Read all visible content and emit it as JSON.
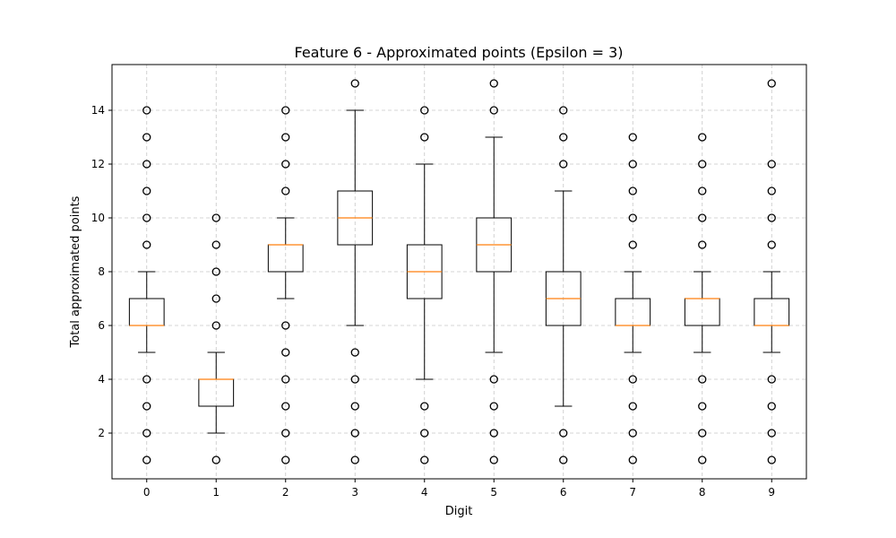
{
  "chart_data": {
    "type": "box",
    "title": "Feature 6 - Approximated points (Epsilon = 3)",
    "xlabel": "Digit",
    "ylabel": "Total approximated points",
    "categories": [
      "0",
      "1",
      "2",
      "3",
      "4",
      "5",
      "6",
      "7",
      "8",
      "9"
    ],
    "ylim": [
      0.3,
      15.7
    ],
    "yticks": [
      2,
      4,
      6,
      8,
      10,
      12,
      14
    ],
    "grid": true,
    "colors": {
      "box": "#000000",
      "median": "#ff7f0e",
      "background": "#ffffff"
    },
    "boxes": [
      {
        "q1": 6,
        "median": 6,
        "q3": 7,
        "whisker_low": 5,
        "whisker_high": 8,
        "outliers": [
          1,
          2,
          3,
          4,
          9,
          10,
          11,
          12,
          13,
          14
        ]
      },
      {
        "q1": 3,
        "median": 4,
        "q3": 4,
        "whisker_low": 2,
        "whisker_high": 5,
        "outliers": [
          1,
          6,
          7,
          8,
          9,
          10
        ]
      },
      {
        "q1": 8,
        "median": 9,
        "q3": 9,
        "whisker_low": 7,
        "whisker_high": 10,
        "outliers": [
          1,
          2,
          3,
          4,
          5,
          6,
          11,
          12,
          13,
          14
        ]
      },
      {
        "q1": 9,
        "median": 10,
        "q3": 11,
        "whisker_low": 6,
        "whisker_high": 14,
        "outliers": [
          1,
          2,
          3,
          4,
          5,
          15
        ]
      },
      {
        "q1": 7,
        "median": 8,
        "q3": 9,
        "whisker_low": 4,
        "whisker_high": 12,
        "outliers": [
          1,
          2,
          3,
          13,
          14
        ]
      },
      {
        "q1": 8,
        "median": 9,
        "q3": 10,
        "whisker_low": 5,
        "whisker_high": 13,
        "outliers": [
          1,
          2,
          3,
          4,
          14,
          15
        ]
      },
      {
        "q1": 6,
        "median": 7,
        "q3": 8,
        "whisker_low": 3,
        "whisker_high": 11,
        "outliers": [
          1,
          2,
          12,
          13,
          14
        ]
      },
      {
        "q1": 6,
        "median": 6,
        "q3": 7,
        "whisker_low": 5,
        "whisker_high": 8,
        "outliers": [
          1,
          2,
          3,
          4,
          9,
          10,
          11,
          12,
          13
        ]
      },
      {
        "q1": 6,
        "median": 7,
        "q3": 7,
        "whisker_low": 5,
        "whisker_high": 8,
        "outliers": [
          1,
          2,
          3,
          4,
          9,
          10,
          11,
          12,
          13
        ]
      },
      {
        "q1": 6,
        "median": 6,
        "q3": 7,
        "whisker_low": 5,
        "whisker_high": 8,
        "outliers": [
          1,
          2,
          3,
          4,
          9,
          10,
          11,
          12,
          15
        ]
      }
    ]
  }
}
